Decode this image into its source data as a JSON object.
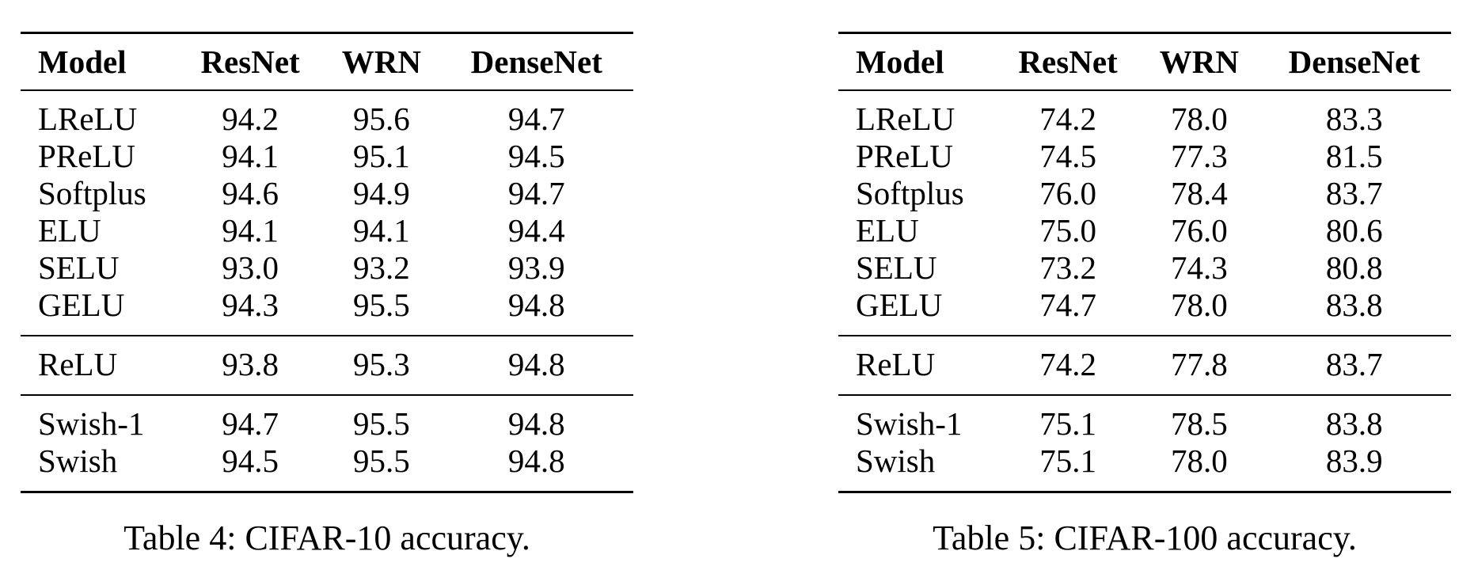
{
  "tables": [
    {
      "headers": [
        "Model",
        "ResNet",
        "WRN",
        "DenseNet"
      ],
      "groups": [
        [
          [
            "LReLU",
            "94.2",
            "95.6",
            "94.7"
          ],
          [
            "PReLU",
            "94.1",
            "95.1",
            "94.5"
          ],
          [
            "Softplus",
            "94.6",
            "94.9",
            "94.7"
          ],
          [
            "ELU",
            "94.1",
            "94.1",
            "94.4"
          ],
          [
            "SELU",
            "93.0",
            "93.2",
            "93.9"
          ],
          [
            "GELU",
            "94.3",
            "95.5",
            "94.8"
          ]
        ],
        [
          [
            "ReLU",
            "93.8",
            "95.3",
            "94.8"
          ]
        ],
        [
          [
            "Swish-1",
            "94.7",
            "95.5",
            "94.8"
          ],
          [
            "Swish",
            "94.5",
            "95.5",
            "94.8"
          ]
        ]
      ],
      "caption": "Table 4: CIFAR-10 accuracy."
    },
    {
      "headers": [
        "Model",
        "ResNet",
        "WRN",
        "DenseNet"
      ],
      "groups": [
        [
          [
            "LReLU",
            "74.2",
            "78.0",
            "83.3"
          ],
          [
            "PReLU",
            "74.5",
            "77.3",
            "81.5"
          ],
          [
            "Softplus",
            "76.0",
            "78.4",
            "83.7"
          ],
          [
            "ELU",
            "75.0",
            "76.0",
            "80.6"
          ],
          [
            "SELU",
            "73.2",
            "74.3",
            "80.8"
          ],
          [
            "GELU",
            "74.7",
            "78.0",
            "83.8"
          ]
        ],
        [
          [
            "ReLU",
            "74.2",
            "77.8",
            "83.7"
          ]
        ],
        [
          [
            "Swish-1",
            "75.1",
            "78.5",
            "83.8"
          ],
          [
            "Swish",
            "75.1",
            "78.0",
            "83.9"
          ]
        ]
      ],
      "caption": "Table 5: CIFAR-100 accuracy."
    }
  ]
}
